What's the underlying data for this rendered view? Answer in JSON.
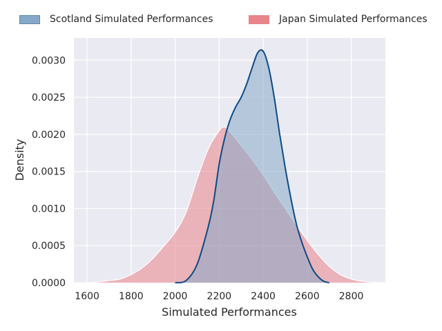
{
  "chart_data": {
    "type": "area",
    "title": "",
    "xlabel": "Simulated Performances",
    "ylabel": "Density",
    "xlim": [
      1540,
      2955
    ],
    "ylim": [
      0,
      0.0033
    ],
    "x_ticks": [
      1600,
      1800,
      2000,
      2200,
      2400,
      2600,
      2800
    ],
    "y_ticks": [
      0.0,
      0.0005,
      0.001,
      0.0015,
      0.002,
      0.0025,
      0.003
    ],
    "y_tick_labels": [
      "0.0000",
      "0.0005",
      "0.0010",
      "0.0015",
      "0.0020",
      "0.0025",
      "0.0030"
    ],
    "grid": true,
    "background": "#eaeaf2",
    "legend_position": "top",
    "series": [
      {
        "name": "Scotland Simulated Performances",
        "fill": "#86a9c8",
        "line": "#0b4a86",
        "x": [
          2000,
          2050,
          2100,
          2150,
          2175,
          2200,
          2225,
          2250,
          2275,
          2300,
          2325,
          2350,
          2375,
          2400,
          2425,
          2450,
          2475,
          2500,
          2525,
          2550,
          2575,
          2600,
          2625,
          2650,
          2675,
          2700
        ],
        "y": [
          0.0,
          3e-05,
          0.00025,
          0.00075,
          0.0011,
          0.0016,
          0.00195,
          0.0022,
          0.00237,
          0.0025,
          0.00268,
          0.0029,
          0.0031,
          0.00312,
          0.0029,
          0.0025,
          0.002,
          0.00155,
          0.00115,
          0.0008,
          0.00055,
          0.00035,
          0.00018,
          8e-05,
          2e-05,
          0.0
        ]
      },
      {
        "name": "Japan Simulated Performances",
        "fill": "#e9848a",
        "line": "#ffffff",
        "x": [
          1620,
          1700,
          1750,
          1800,
          1850,
          1900,
          1950,
          2000,
          2050,
          2100,
          2150,
          2200,
          2225,
          2250,
          2300,
          2350,
          2400,
          2450,
          2500,
          2550,
          2600,
          2650,
          2700,
          2750,
          2800,
          2850,
          2930
        ],
        "y": [
          0.0,
          3e-05,
          5e-05,
          0.00011,
          0.0002,
          0.00033,
          0.0005,
          0.00068,
          0.00095,
          0.0014,
          0.0018,
          0.00205,
          0.0021,
          0.00203,
          0.00185,
          0.00166,
          0.00145,
          0.00122,
          0.001,
          0.00078,
          0.00057,
          0.00038,
          0.00022,
          0.00011,
          5e-05,
          2e-05,
          0.0
        ]
      }
    ]
  }
}
